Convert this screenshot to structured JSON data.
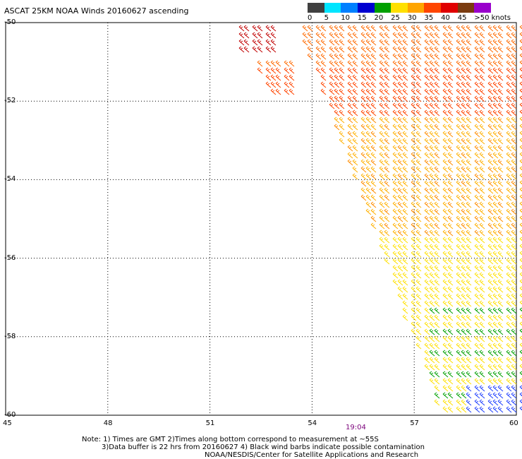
{
  "title": "ASCAT 25KM NOAA Winds 20160627 ascending",
  "legend": {
    "labels": [
      "0",
      "5",
      "10",
      "15",
      "20",
      "25",
      "30",
      "35",
      "40",
      "45",
      ">50 knots"
    ],
    "colors": [
      "#404040",
      "#00e5ff",
      "#0080ff",
      "#0000d0",
      "#00a000",
      "#ffe000",
      "#ffa500",
      "#ff4500",
      "#e00000",
      "#7a3b10",
      "#9900cc"
    ]
  },
  "axes": {
    "x_labels": [
      "45",
      "48",
      "51",
      "54",
      "57",
      "60"
    ],
    "y_labels": [
      "-50",
      "-52",
      "-54",
      "-56",
      "-58",
      "-60"
    ],
    "lon_range": [
      45,
      60
    ],
    "lat_range": [
      -50,
      -60
    ],
    "grid": "dotted"
  },
  "time_label": "19:04",
  "notes": [
    "Note: 1) Times are GMT 2)Times along bottom correspond to measurement at ~55S",
    "3)Data buffer is 22 hrs from 20160627 4) Black wind barbs indicate possible contamination",
    "NOAA/NESDIS/Center for Satellite Applications and Research"
  ]
}
